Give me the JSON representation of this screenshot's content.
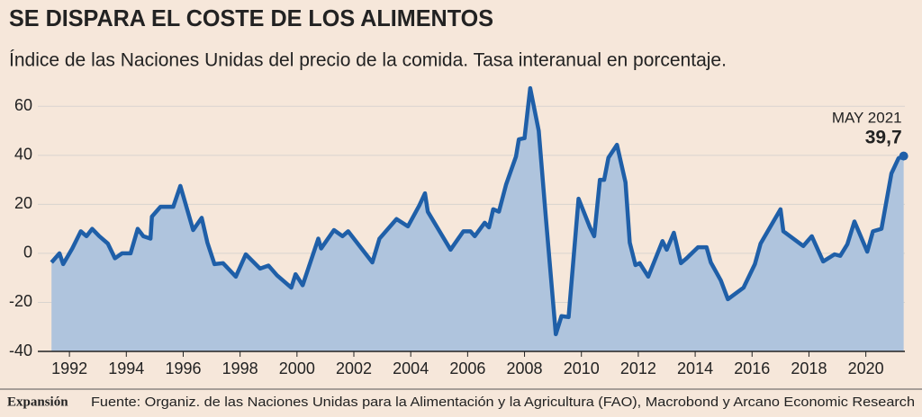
{
  "chart_data": {
    "type": "area",
    "title": "SE DISPARA EL COSTE DE LOS ALIMENTOS",
    "subtitle": "Índice de las Naciones Unidas del precio de la comida. Tasa interanual en porcentaje.",
    "x": [
      1991.37,
      1991.65,
      1991.78,
      1992.1,
      1992.4,
      1992.6,
      1992.8,
      1993.05,
      1993.35,
      1993.6,
      1993.85,
      1994.15,
      1994.4,
      1994.6,
      1994.85,
      1994.9,
      1995.2,
      1995.65,
      1995.9,
      1996.35,
      1996.65,
      1996.85,
      1997.1,
      1997.4,
      1997.85,
      1998.2,
      1998.7,
      1999.0,
      1999.3,
      1999.8,
      1999.95,
      2000.2,
      2000.75,
      2000.85,
      2001.3,
      2001.6,
      2001.8,
      2002.65,
      2002.9,
      2003.5,
      2003.9,
      2004.3,
      2004.5,
      2004.6,
      2005.4,
      2005.85,
      2006.1,
      2006.25,
      2006.6,
      2006.75,
      2006.9,
      2007.1,
      2007.35,
      2007.7,
      2007.8,
      2008.0,
      2008.2,
      2008.5,
      2008.75,
      2009.1,
      2009.3,
      2009.55,
      2009.9,
      2010.3,
      2010.45,
      2010.65,
      2010.8,
      2010.95,
      2011.25,
      2011.55,
      2011.7,
      2011.9,
      2012.05,
      2012.35,
      2012.85,
      2013.0,
      2013.25,
      2013.5,
      2013.7,
      2014.1,
      2014.4,
      2014.55,
      2014.9,
      2015.15,
      2015.7,
      2016.1,
      2016.3,
      2016.6,
      2017.0,
      2017.1,
      2017.8,
      2018.1,
      2018.5,
      2018.9,
      2019.1,
      2019.35,
      2019.6,
      2020.05,
      2020.25,
      2020.55,
      2020.9,
      2021.15,
      2021.33
    ],
    "series": [
      {
        "color": "#1f5fa8",
        "fill": "#afc4dd",
        "values": [
          -3.7,
          0,
          -4.4,
          2,
          9,
          7,
          10,
          7,
          4,
          -2,
          0,
          0,
          10,
          7,
          6,
          15,
          19,
          19,
          27.5,
          9.5,
          14.5,
          4.4,
          -4.4,
          -4,
          -9.5,
          -0.4,
          -6.2,
          -5,
          -9,
          -14,
          -8.5,
          -13,
          6,
          2,
          9.5,
          7,
          9,
          -3.7,
          6,
          14,
          11,
          19.5,
          24.5,
          17,
          1.5,
          9,
          9,
          7,
          12.5,
          10.6,
          18,
          17,
          28,
          39.5,
          46.5,
          47,
          67.4,
          50,
          14.6,
          -33,
          -25.6,
          -26,
          22.3,
          10.6,
          7,
          30,
          30,
          39,
          44.3,
          29,
          4.4,
          -4.8,
          -4,
          -9.5,
          5,
          1.5,
          8.4,
          -4,
          -2,
          2.5,
          2.5,
          -3.7,
          -11,
          -18.7,
          -14,
          -4.4,
          4,
          10,
          18,
          9,
          3,
          7,
          -3.3,
          -0.4,
          -1,
          3.7,
          13,
          0.7,
          9,
          10,
          32.6,
          38.8,
          39.7
        ]
      }
    ],
    "highlight": {
      "title": "MAY 2021",
      "label": "39,7",
      "x": 2021.33,
      "value": 39.7
    },
    "xlim": [
      1991.3,
      2021.5
    ],
    "ylim": [
      -40,
      70
    ],
    "xticks": [
      1992,
      1994,
      1996,
      1998,
      2000,
      2002,
      2004,
      2006,
      2008,
      2010,
      2012,
      2014,
      2016,
      2018,
      2020
    ],
    "yticks": [
      -40,
      -20,
      0,
      20,
      40,
      60
    ],
    "grid": true,
    "footer": {
      "brand": "Expansión",
      "source": "Fuente: Organiz. de las Naciones Unidas para la Alimentación y la Agricultura (FAO), Macrobond y Arcano Economic Research"
    }
  }
}
